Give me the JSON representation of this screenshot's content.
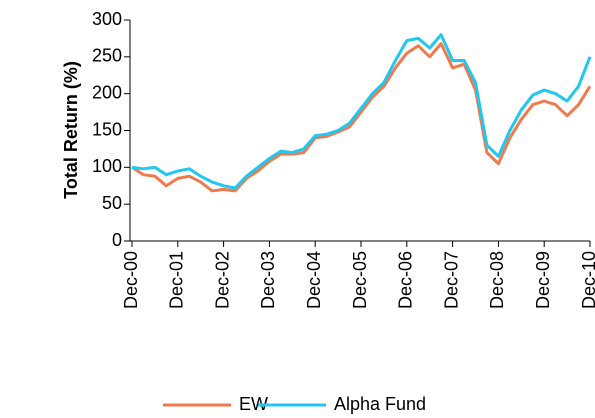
{
  "chart_data": {
    "type": "line",
    "y_label": "Total Return (%)",
    "categories": [
      "Dec-00",
      null,
      null,
      null,
      "Dec-01",
      null,
      null,
      null,
      "Dec-02",
      null,
      null,
      null,
      "Dec-03",
      null,
      null,
      null,
      "Dec-04",
      null,
      null,
      null,
      "Dec-05",
      null,
      null,
      null,
      "Dec-06",
      null,
      null,
      null,
      "Dec-07",
      null,
      null,
      null,
      "Dec-08",
      null,
      null,
      null,
      "Dec-09",
      null,
      null,
      null,
      "Dec-10"
    ],
    "series": [
      {
        "name": "EW",
        "color": "#f07a4e",
        "values": [
          100,
          90,
          88,
          75,
          85,
          88,
          80,
          68,
          70,
          68,
          85,
          95,
          108,
          118,
          118,
          120,
          140,
          142,
          148,
          155,
          175,
          195,
          210,
          235,
          255,
          265,
          250,
          268,
          235,
          240,
          205,
          120,
          105,
          140,
          165,
          185,
          190,
          185,
          170,
          185,
          210
        ]
      },
      {
        "name": "Alpha Fund",
        "color": "#1ec8f0",
        "values": [
          100,
          98,
          100,
          90,
          95,
          98,
          88,
          80,
          75,
          72,
          88,
          100,
          112,
          122,
          120,
          125,
          143,
          145,
          150,
          160,
          180,
          200,
          215,
          245,
          272,
          275,
          262,
          280,
          245,
          245,
          215,
          130,
          115,
          150,
          178,
          198,
          205,
          200,
          190,
          210,
          250
        ]
      }
    ],
    "ylim": [
      0,
      300
    ],
    "yticks": [
      0,
      50,
      100,
      150,
      200,
      250,
      300
    ],
    "grid": false,
    "legend": "bottom"
  }
}
